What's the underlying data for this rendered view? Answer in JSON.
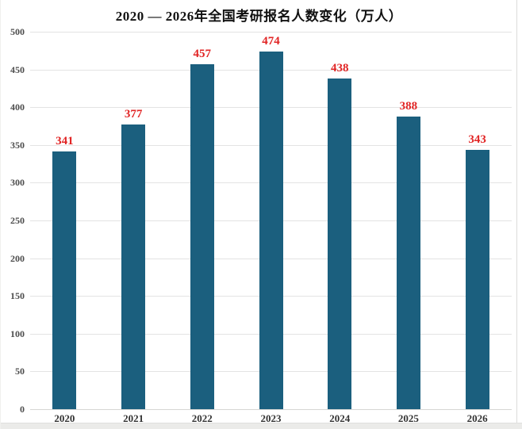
{
  "chart_data": {
    "type": "bar",
    "title": "2020 — 2026年全国考研报名人数变化（万人）",
    "categories": [
      "2020",
      "2021",
      "2022",
      "2023",
      "2024",
      "2025",
      "2026"
    ],
    "values": [
      341,
      377,
      457,
      474,
      438,
      388,
      343
    ],
    "xlabel": "",
    "ylabel": "",
    "ylim": [
      0,
      500
    ],
    "yticks": [
      0,
      50,
      100,
      150,
      200,
      250,
      300,
      350,
      400,
      450,
      500
    ],
    "grid": "horizontal",
    "legend_position": "none",
    "bar_color": "#1b5f7e",
    "value_label_color": "#e12424",
    "grid_color": "#e3e3e3",
    "axis_tick_color": "#4d4d4d",
    "title_color": "#111111",
    "background_color": "#ffffff"
  }
}
